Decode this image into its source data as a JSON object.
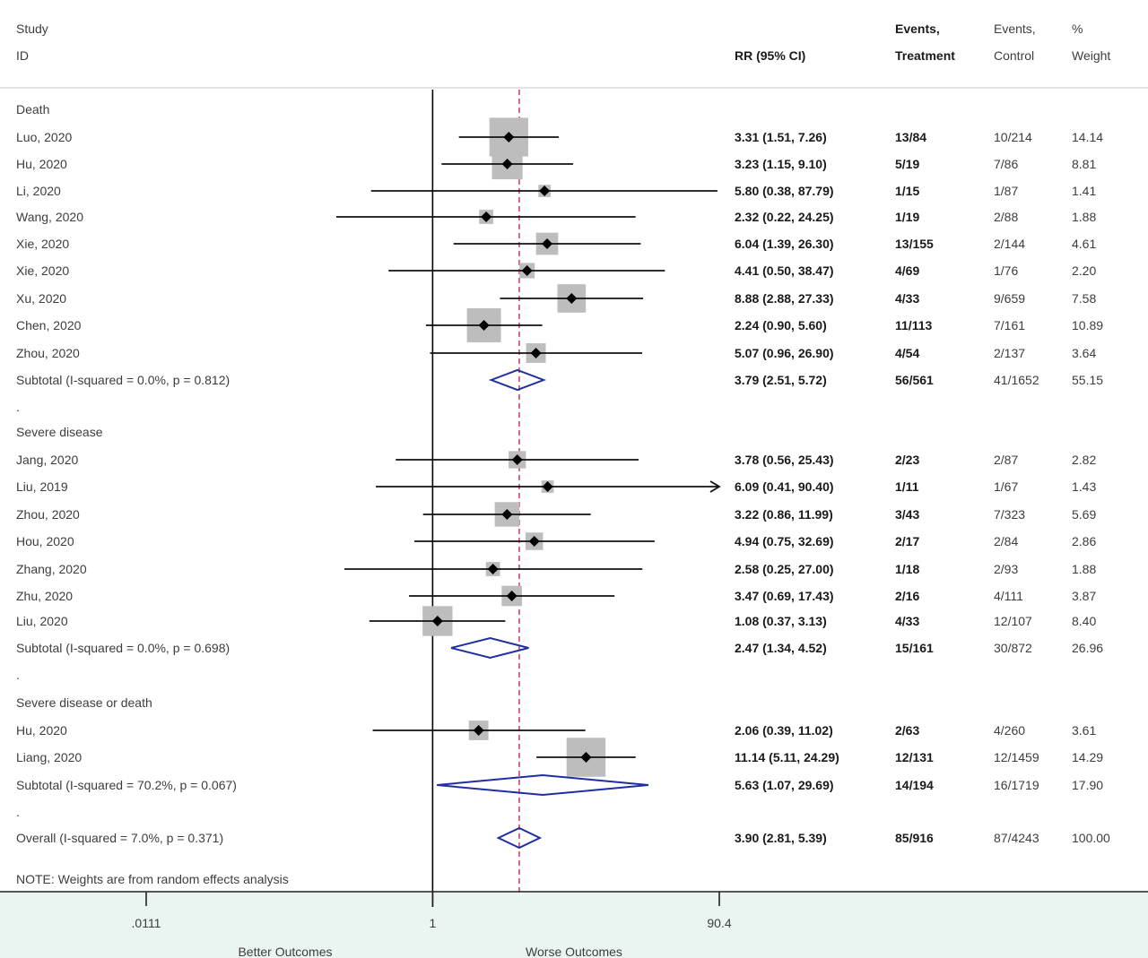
{
  "chart_data": {
    "type": "forest",
    "title": "",
    "xscale": "log",
    "xlim": [
      0.0111,
      90.4
    ],
    "null_value": 1,
    "overall_line": 3.9,
    "x_ticks": [
      ".0111",
      "1",
      "90.4"
    ],
    "x_tick_values": [
      0.0111,
      1,
      90.4
    ],
    "xlabel_left": "Better Outcomes",
    "xlabel_right": "Worse Outcomes",
    "headers": {
      "study": "Study",
      "id": "ID",
      "rr": "RR (95% CI)",
      "events_t1": "Events,",
      "events_t2": "Treatment",
      "events_c1": "Events,",
      "events_c2": "Control",
      "weight1": "%",
      "weight2": "Weight"
    },
    "note": "NOTE: Weights are from random effects analysis",
    "rows": [
      {
        "kind": "group",
        "label": "Death"
      },
      {
        "kind": "study",
        "label": "Luo, 2020",
        "rr": 3.31,
        "lo": 1.51,
        "hi": 7.26,
        "ci_text": "3.31 (1.51, 7.26)",
        "events_t": "13/84",
        "events_c": "10/214",
        "weight": "14.14",
        "w": 14.14
      },
      {
        "kind": "study",
        "label": "Hu, 2020",
        "rr": 3.23,
        "lo": 1.15,
        "hi": 9.1,
        "ci_text": "3.23 (1.15, 9.10)",
        "events_t": "5/19",
        "events_c": "7/86",
        "weight": "8.81",
        "w": 8.81
      },
      {
        "kind": "study",
        "label": "Li, 2020",
        "rr": 5.8,
        "lo": 0.38,
        "hi": 87.79,
        "ci_text": "5.80 (0.38, 87.79)",
        "events_t": "1/15",
        "events_c": "1/87",
        "weight": "1.41",
        "w": 1.41
      },
      {
        "kind": "study",
        "label": "Wang, 2020",
        "rr": 2.32,
        "lo": 0.22,
        "hi": 24.25,
        "ci_text": "2.32 (0.22, 24.25)",
        "events_t": "1/19",
        "events_c": "2/88",
        "weight": "1.88",
        "w": 1.88
      },
      {
        "kind": "study",
        "label": "Xie, 2020",
        "rr": 6.04,
        "lo": 1.39,
        "hi": 26.3,
        "ci_text": "6.04 (1.39, 26.30)",
        "events_t": "13/155",
        "events_c": "2/144",
        "weight": "4.61",
        "w": 4.61
      },
      {
        "kind": "study",
        "label": "Xie, 2020",
        "rr": 4.41,
        "lo": 0.5,
        "hi": 38.47,
        "ci_text": "4.41 (0.50, 38.47)",
        "events_t": "4/69",
        "events_c": "1/76",
        "weight": "2.20",
        "w": 2.2
      },
      {
        "kind": "study",
        "label": "Xu, 2020",
        "rr": 8.88,
        "lo": 2.88,
        "hi": 27.33,
        "ci_text": "8.88 (2.88, 27.33)",
        "events_t": "4/33",
        "events_c": "9/659",
        "weight": "7.58",
        "w": 7.58
      },
      {
        "kind": "study",
        "label": "Chen, 2020",
        "rr": 2.24,
        "lo": 0.9,
        "hi": 5.6,
        "ci_text": "2.24 (0.90, 5.60)",
        "events_t": "11/113",
        "events_c": "7/161",
        "weight": "10.89",
        "w": 10.89
      },
      {
        "kind": "study",
        "label": "Zhou, 2020",
        "rr": 5.07,
        "lo": 0.96,
        "hi": 26.9,
        "ci_text": "5.07 (0.96, 26.90)",
        "events_t": "4/54",
        "events_c": "2/137",
        "weight": "3.64",
        "w": 3.64
      },
      {
        "kind": "subtotal",
        "label": "Subtotal  (I-squared = 0.0%, p = 0.812)",
        "rr": 3.79,
        "lo": 2.51,
        "hi": 5.72,
        "ci_text": "3.79 (2.51, 5.72)",
        "events_t": "56/561",
        "events_c": "41/1652",
        "weight": "55.15"
      },
      {
        "kind": "spacer",
        "label": "."
      },
      {
        "kind": "group",
        "label": "Severe disease"
      },
      {
        "kind": "study",
        "label": "Jang, 2020",
        "rr": 3.78,
        "lo": 0.56,
        "hi": 25.43,
        "ci_text": "3.78 (0.56, 25.43)",
        "events_t": "2/23",
        "events_c": "2/87",
        "weight": "2.82",
        "w": 2.82
      },
      {
        "kind": "study",
        "label": "Liu, 2019",
        "rr": 6.09,
        "lo": 0.41,
        "hi": 90.4,
        "ci_text": "6.09 (0.41, 90.40)",
        "events_t": "1/11",
        "events_c": "1/67",
        "weight": "1.43",
        "w": 1.43,
        "arrow": true
      },
      {
        "kind": "study",
        "label": "Zhou, 2020",
        "rr": 3.22,
        "lo": 0.86,
        "hi": 11.99,
        "ci_text": "3.22 (0.86, 11.99)",
        "events_t": "3/43",
        "events_c": "7/323",
        "weight": "5.69",
        "w": 5.69
      },
      {
        "kind": "study",
        "label": "Hou, 2020",
        "rr": 4.94,
        "lo": 0.75,
        "hi": 32.69,
        "ci_text": "4.94 (0.75, 32.69)",
        "events_t": "2/17",
        "events_c": "2/84",
        "weight": "2.86",
        "w": 2.86
      },
      {
        "kind": "study",
        "label": "Zhang, 2020",
        "rr": 2.58,
        "lo": 0.25,
        "hi": 27.0,
        "ci_text": "2.58 (0.25, 27.00)",
        "events_t": "1/18",
        "events_c": "2/93",
        "weight": "1.88",
        "w": 1.88
      },
      {
        "kind": "study",
        "label": "Zhu, 2020",
        "rr": 3.47,
        "lo": 0.69,
        "hi": 17.43,
        "ci_text": "3.47 (0.69, 17.43)",
        "events_t": "2/16",
        "events_c": "4/111",
        "weight": "3.87",
        "w": 3.87
      },
      {
        "kind": "study",
        "label": "Liu, 2020",
        "rr": 1.08,
        "lo": 0.37,
        "hi": 3.13,
        "ci_text": "1.08 (0.37, 3.13)",
        "events_t": "4/33",
        "events_c": "12/107",
        "weight": "8.40",
        "w": 8.4
      },
      {
        "kind": "subtotal",
        "label": "Subtotal  (I-squared = 0.0%, p = 0.698)",
        "rr": 2.47,
        "lo": 1.34,
        "hi": 4.52,
        "ci_text": "2.47 (1.34, 4.52)",
        "events_t": "15/161",
        "events_c": "30/872",
        "weight": "26.96"
      },
      {
        "kind": "spacer",
        "label": "."
      },
      {
        "kind": "group",
        "label": "Severe disease or death"
      },
      {
        "kind": "study",
        "label": "Hu, 2020",
        "rr": 2.06,
        "lo": 0.39,
        "hi": 11.02,
        "ci_text": "2.06 (0.39, 11.02)",
        "events_t": "2/63",
        "events_c": "4/260",
        "weight": "3.61",
        "w": 3.61
      },
      {
        "kind": "study",
        "label": "Liang, 2020",
        "rr": 11.14,
        "lo": 5.11,
        "hi": 24.29,
        "ci_text": "11.14 (5.11, 24.29)",
        "events_t": "12/131",
        "events_c": "12/1459",
        "weight": "14.29",
        "w": 14.29
      },
      {
        "kind": "subtotal",
        "label": "Subtotal  (I-squared = 70.2%, p = 0.067)",
        "rr": 5.63,
        "lo": 1.07,
        "hi": 29.69,
        "ci_text": "5.63 (1.07, 29.69)",
        "events_t": "14/194",
        "events_c": "16/1719",
        "weight": "17.90"
      },
      {
        "kind": "spacer",
        "label": "."
      },
      {
        "kind": "overall",
        "label": "Overall  (I-squared = 7.0%, p = 0.371)",
        "rr": 3.9,
        "lo": 2.81,
        "hi": 5.39,
        "ci_text": "3.90 (2.81, 5.39)",
        "events_t": "85/916",
        "events_c": "87/4243",
        "weight": "100.00"
      }
    ],
    "colors": {
      "diamond": "#1f2fa0",
      "overall_line": "#c2185b",
      "box": "#bdbdbd",
      "axis_band": "#eaf5f1"
    }
  }
}
